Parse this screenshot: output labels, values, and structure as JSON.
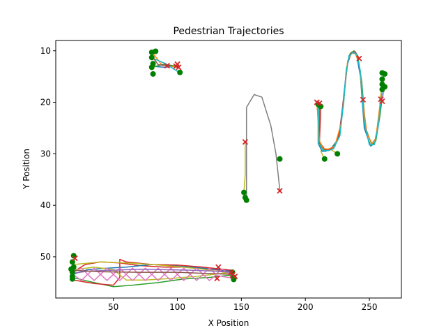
{
  "chart_data": {
    "type": "line",
    "title": "Pedestrian Trajectories",
    "xlabel": "X Position",
    "ylabel": "Y Position",
    "xlim": [
      5,
      275
    ],
    "ylim": [
      58,
      8
    ],
    "y_inverted": true,
    "grid": false,
    "legend": "none",
    "x_ticks": [
      50,
      100,
      150,
      200,
      250
    ],
    "y_ticks": [
      10,
      20,
      30,
      40,
      50
    ],
    "start_marker": {
      "shape": "circle",
      "color": "#008000"
    },
    "end_marker": {
      "shape": "x",
      "color": "#d62728"
    },
    "series": [
      {
        "color": "#1f77b4",
        "points": [
          [
            80,
            13
          ],
          [
            90,
            13.2
          ],
          [
            100,
            13
          ]
        ]
      },
      {
        "color": "#ff7f0e",
        "points": [
          [
            81,
            10.5
          ],
          [
            88,
            12.8
          ],
          [
            101,
            13.2
          ]
        ]
      },
      {
        "color": "#2ca02c",
        "points": [
          [
            80,
            13.2
          ],
          [
            90,
            12.6
          ],
          [
            99,
            13
          ]
        ]
      },
      {
        "color": "#17becf",
        "points": [
          [
            81,
            11.5
          ],
          [
            90,
            12.4
          ],
          [
            102,
            14.3
          ]
        ]
      },
      {
        "color": "#8c564b",
        "points": [
          [
            80,
            11
          ],
          [
            85,
            12.7
          ],
          [
            95,
            12.9
          ]
        ]
      },
      {
        "color": "#bcbd22",
        "points": [
          [
            152,
            37.5
          ],
          [
            153,
            34
          ],
          [
            153,
            27.7
          ]
        ]
      },
      {
        "color": "#7f7f7f",
        "points": [
          [
            154,
            39
          ],
          [
            154,
            30
          ],
          [
            154,
            21
          ],
          [
            160,
            18.5
          ],
          [
            166,
            19
          ],
          [
            173,
            24.5
          ],
          [
            177,
            30
          ],
          [
            180,
            37
          ]
        ]
      },
      {
        "color": "#bcbd22",
        "points": [
          [
            215,
            31
          ],
          [
            212,
            29.5
          ],
          [
            216,
            29.2
          ],
          [
            219,
            29
          ],
          [
            225,
            30
          ]
        ]
      },
      {
        "color": "#1f77b4",
        "points": [
          [
            210,
            20.5
          ],
          [
            210,
            28
          ],
          [
            213,
            29.5
          ],
          [
            216,
            29.5
          ],
          [
            220,
            29
          ],
          [
            226,
            27
          ],
          [
            229,
            21
          ],
          [
            232,
            14
          ],
          [
            234,
            11
          ],
          [
            237,
            10.2
          ],
          [
            240,
            10.8
          ],
          [
            243,
            15
          ],
          [
            246,
            25
          ],
          [
            251,
            28.5
          ],
          [
            254,
            28
          ],
          [
            257,
            24
          ],
          [
            260,
            18
          ],
          [
            261,
            14.5
          ]
        ]
      },
      {
        "color": "#2ca02c",
        "points": [
          [
            211,
            21
          ],
          [
            211,
            28
          ],
          [
            214,
            29.2
          ],
          [
            218,
            29.3
          ],
          [
            222,
            28.8
          ],
          [
            227,
            26
          ],
          [
            230,
            20
          ],
          [
            232,
            13.5
          ],
          [
            235,
            10.5
          ],
          [
            238,
            10
          ],
          [
            241,
            11
          ],
          [
            244,
            16
          ],
          [
            247,
            25
          ],
          [
            252,
            28.3
          ],
          [
            255,
            27.5
          ],
          [
            258,
            23
          ],
          [
            260,
            19.2
          ]
        ]
      },
      {
        "color": "#d62728",
        "points": [
          [
            212,
            21
          ],
          [
            211,
            27.7
          ],
          [
            215,
            29.1
          ],
          [
            219,
            29.2
          ],
          [
            223,
            28.6
          ],
          [
            227,
            25.5
          ],
          [
            230,
            19
          ],
          [
            233,
            12.5
          ],
          [
            236,
            10.3
          ],
          [
            239,
            10.2
          ],
          [
            242,
            11.5
          ]
        ]
      },
      {
        "color": "#ff7f0e",
        "points": [
          [
            209,
            20.2
          ],
          [
            211,
            27.5
          ],
          [
            214,
            29
          ],
          [
            218,
            29.1
          ],
          [
            223,
            28.5
          ],
          [
            228,
            24
          ],
          [
            231,
            17
          ],
          [
            233,
            12
          ],
          [
            236,
            10.5
          ],
          [
            239,
            10.5
          ],
          [
            242,
            12.5
          ],
          [
            245,
            20
          ],
          [
            248,
            26
          ],
          [
            252,
            28
          ],
          [
            255,
            27
          ],
          [
            258,
            21
          ],
          [
            260,
            16
          ]
        ]
      },
      {
        "color": "#17becf",
        "points": [
          [
            210,
            21
          ],
          [
            210,
            27.8
          ],
          [
            214,
            29.4
          ],
          [
            218,
            29.4
          ],
          [
            222,
            29
          ],
          [
            227,
            26.5
          ],
          [
            230,
            19.5
          ],
          [
            232,
            14
          ],
          [
            234,
            11.2
          ],
          [
            237,
            10.3
          ],
          [
            240,
            10.6
          ],
          [
            243,
            14
          ],
          [
            246,
            24
          ],
          [
            250,
            28.3
          ],
          [
            254,
            28.2
          ],
          [
            257,
            24.5
          ],
          [
            259,
            19.5
          ],
          [
            261,
            15
          ]
        ]
      },
      {
        "color": "#bcbd22",
        "points": [
          [
            258,
            19.8
          ],
          [
            260,
            17
          ],
          [
            262,
            16.5
          ]
        ]
      },
      {
        "color": "#e377c2",
        "points": [
          [
            262,
            17
          ],
          [
            260,
            19.5
          ]
        ]
      },
      {
        "color": "#d62728",
        "points": [
          [
            18,
            53
          ],
          [
            28,
            51.5
          ],
          [
            40,
            51
          ],
          [
            55,
            51.2
          ],
          [
            70,
            51.7
          ],
          [
            90,
            52
          ],
          [
            110,
            52
          ],
          [
            130,
            52.5
          ],
          [
            142,
            53
          ]
        ]
      },
      {
        "color": "#1f77b4",
        "points": [
          [
            17,
            53.5
          ],
          [
            30,
            52.5
          ],
          [
            45,
            52.2
          ],
          [
            60,
            52
          ],
          [
            80,
            51.5
          ],
          [
            100,
            51.8
          ],
          [
            120,
            52.2
          ],
          [
            143,
            52.8
          ]
        ]
      },
      {
        "color": "#2ca02c",
        "points": [
          [
            18,
            54
          ],
          [
            35,
            55
          ],
          [
            50,
            55.8
          ],
          [
            65,
            55.5
          ],
          [
            85,
            55
          ],
          [
            105,
            54.3
          ],
          [
            125,
            54
          ],
          [
            144,
            53.5
          ]
        ]
      },
      {
        "color": "#d62728",
        "points": [
          [
            19,
            54.5
          ],
          [
            35,
            55.2
          ],
          [
            50,
            55.5
          ],
          [
            55,
            54
          ],
          [
            55,
            50.5
          ],
          [
            60,
            51
          ],
          [
            80,
            51.5
          ],
          [
            100,
            51.6
          ],
          [
            120,
            52
          ],
          [
            142,
            52.6
          ]
        ]
      },
      {
        "color": "#bcbd22",
        "points": [
          [
            20,
            52.5
          ],
          [
            35,
            52
          ],
          [
            50,
            52.5
          ],
          [
            55,
            53.5
          ],
          [
            60,
            54.5
          ],
          [
            75,
            54.5
          ],
          [
            95,
            54.2
          ],
          [
            115,
            53.8
          ],
          [
            135,
            53.2
          ],
          [
            145,
            53
          ]
        ]
      },
      {
        "color": "#bcbd22",
        "points": [
          [
            19,
            51.5
          ],
          [
            40,
            51
          ],
          [
            60,
            51.2
          ],
          [
            80,
            51.5
          ],
          [
            100,
            51.9
          ],
          [
            120,
            52.4
          ],
          [
            143,
            53.2
          ]
        ]
      },
      {
        "color": "#e377c2",
        "points": [
          [
            19,
            53
          ],
          [
            25,
            52.2
          ],
          [
            30,
            53.4
          ],
          [
            35,
            52.2
          ],
          [
            40,
            53.4
          ],
          [
            45,
            52.2
          ],
          [
            50,
            53.4
          ],
          [
            55,
            52.2
          ],
          [
            60,
            53.4
          ],
          [
            65,
            52.2
          ],
          [
            70,
            53.4
          ],
          [
            75,
            52.2
          ],
          [
            80,
            53.4
          ],
          [
            85,
            52.2
          ],
          [
            90,
            53.4
          ],
          [
            95,
            52.2
          ],
          [
            100,
            53.4
          ],
          [
            105,
            52.2
          ],
          [
            110,
            53.4
          ],
          [
            115,
            52.2
          ],
          [
            120,
            53.4
          ],
          [
            125,
            52.2
          ],
          [
            130,
            53.4
          ],
          [
            135,
            52.4
          ],
          [
            142,
            53.5
          ]
        ]
      },
      {
        "color": "#e377c2",
        "points": [
          [
            19,
            53.5
          ],
          [
            25,
            54.6
          ],
          [
            30,
            53.4
          ],
          [
            35,
            54.6
          ],
          [
            40,
            53.4
          ],
          [
            45,
            54.6
          ],
          [
            50,
            53.4
          ],
          [
            55,
            54.6
          ],
          [
            60,
            53.4
          ],
          [
            65,
            54.6
          ],
          [
            70,
            53.4
          ],
          [
            75,
            54.6
          ],
          [
            80,
            53.4
          ],
          [
            85,
            54.6
          ],
          [
            90,
            53.4
          ],
          [
            95,
            54.6
          ],
          [
            100,
            53.4
          ],
          [
            105,
            54.6
          ],
          [
            110,
            53.4
          ],
          [
            115,
            54.6
          ],
          [
            120,
            53.4
          ],
          [
            125,
            54.6
          ],
          [
            130,
            53.6
          ],
          [
            144,
            54.2
          ]
        ]
      },
      {
        "color": "#9467bd",
        "points": [
          [
            18,
            53.2
          ],
          [
            30,
            52.8
          ],
          [
            50,
            52.6
          ],
          [
            70,
            52.4
          ],
          [
            90,
            52.5
          ],
          [
            110,
            52.6
          ],
          [
            130,
            52.8
          ],
          [
            142,
            53
          ]
        ]
      },
      {
        "color": "#8c564b",
        "points": [
          [
            18,
            52.6
          ],
          [
            40,
            52.9
          ],
          [
            70,
            53
          ],
          [
            100,
            53
          ],
          [
            120,
            53.2
          ],
          [
            143,
            53.4
          ]
        ]
      }
    ],
    "start_points": [
      [
        80,
        10.3
      ],
      [
        83,
        10.1
      ],
      [
        80,
        11.3
      ],
      [
        81,
        12.5
      ],
      [
        80,
        13.2
      ],
      [
        81,
        14.5
      ],
      [
        102,
        14.2
      ],
      [
        152,
        37.5
      ],
      [
        153,
        38.5
      ],
      [
        154,
        39
      ],
      [
        180,
        31
      ],
      [
        210,
        20.4
      ],
      [
        212,
        20.8
      ],
      [
        215,
        31
      ],
      [
        225,
        30
      ],
      [
        260,
        14.3
      ],
      [
        262,
        14.5
      ],
      [
        260,
        15.5
      ],
      [
        260,
        16.5
      ],
      [
        262,
        17
      ],
      [
        260,
        17.5
      ],
      [
        19,
        49.8
      ],
      [
        18,
        51
      ],
      [
        19,
        52
      ],
      [
        17,
        52.4
      ],
      [
        18,
        53
      ],
      [
        18,
        53.8
      ],
      [
        18,
        54.3
      ],
      [
        143,
        53
      ],
      [
        144,
        54
      ],
      [
        144,
        54.4
      ]
    ],
    "end_points": [
      [
        100,
        12.6
      ],
      [
        101,
        13.2
      ],
      [
        92,
        12.9
      ],
      [
        99,
        13
      ],
      [
        153,
        27.7
      ],
      [
        180,
        37.2
      ],
      [
        209,
        20
      ],
      [
        211,
        20.2
      ],
      [
        242,
        11.5
      ],
      [
        245,
        19.5
      ],
      [
        259,
        19.4
      ],
      [
        260,
        19.8
      ],
      [
        20,
        50.3
      ],
      [
        132,
        52
      ],
      [
        142,
        53
      ],
      [
        131,
        54.2
      ],
      [
        143,
        53.5
      ],
      [
        145,
        53.8
      ]
    ]
  }
}
